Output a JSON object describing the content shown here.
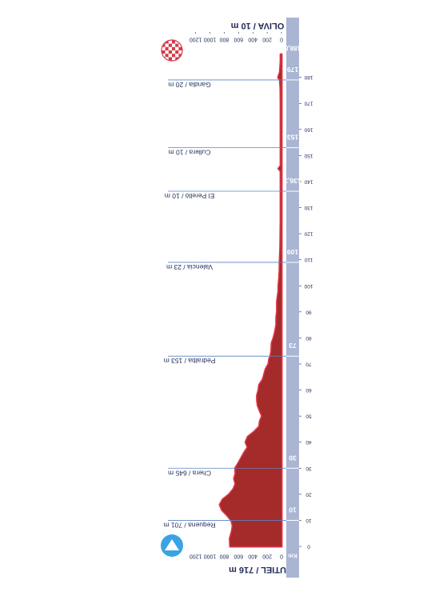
{
  "chart_data": {
    "type": "area",
    "orientation": "rotated 90° (distance axis runs bottom to top)",
    "start_label": "UTIEL / 716 m",
    "finish_label": "OLIVA / 10 m",
    "distance_unit": "Km",
    "xlim": [
      0,
      188.8
    ],
    "ylim": [
      0,
      1200
    ],
    "y_ticks": [
      "0",
      "200",
      "400",
      "600",
      "800",
      "1000",
      "1200"
    ],
    "x_ticks": [
      "0",
      "10",
      "20",
      "30",
      "40",
      "50",
      "60",
      "70",
      "80",
      "90",
      "100",
      "110",
      "120",
      "130",
      "140",
      "150",
      "160",
      "170",
      "180"
    ],
    "total_distance_label": "188,8",
    "colors": {
      "fill": "#a52a2a",
      "climb": "#e03a4a",
      "axis_bar": "#a9b5d2",
      "label": "#1e2a56",
      "leader": "#5b82c8"
    },
    "start_icon": "triangle-start-icon",
    "finish_icon": "checkered-flag-icon",
    "waypoints": [
      {
        "km": 10,
        "km_label": "10",
        "name": "Requena / 701 m"
      },
      {
        "km": 30,
        "km_label": "30",
        "name": "Chera / 645 m"
      },
      {
        "km": 73,
        "km_label": "73",
        "name": "Pedralba / 153 m"
      },
      {
        "km": 109,
        "km_label": "109",
        "name": "Valencia / 23 m"
      },
      {
        "km": 136.3,
        "km_label": "136,3",
        "name": "El Perellò / 10 m"
      },
      {
        "km": 153,
        "km_label": "153",
        "name": "Cullera / 10 m"
      },
      {
        "km": 179,
        "km_label": "179",
        "name": "Gandia / 20 m"
      }
    ],
    "profile": [
      {
        "x": 0,
        "y": 716
      },
      {
        "x": 3,
        "y": 720
      },
      {
        "x": 6,
        "y": 690
      },
      {
        "x": 8,
        "y": 680
      },
      {
        "x": 10,
        "y": 701
      },
      {
        "x": 12,
        "y": 760
      },
      {
        "x": 14,
        "y": 830
      },
      {
        "x": 16,
        "y": 860
      },
      {
        "x": 18,
        "y": 820
      },
      {
        "x": 20,
        "y": 730
      },
      {
        "x": 22,
        "y": 670
      },
      {
        "x": 24,
        "y": 640
      },
      {
        "x": 26,
        "y": 660
      },
      {
        "x": 28,
        "y": 640
      },
      {
        "x": 30,
        "y": 645
      },
      {
        "x": 32,
        "y": 600
      },
      {
        "x": 34,
        "y": 560
      },
      {
        "x": 36,
        "y": 520
      },
      {
        "x": 38,
        "y": 470
      },
      {
        "x": 40,
        "y": 500
      },
      {
        "x": 42,
        "y": 470
      },
      {
        "x": 44,
        "y": 380
      },
      {
        "x": 46,
        "y": 310
      },
      {
        "x": 48,
        "y": 300
      },
      {
        "x": 50,
        "y": 270
      },
      {
        "x": 52,
        "y": 300
      },
      {
        "x": 54,
        "y": 330
      },
      {
        "x": 56,
        "y": 340
      },
      {
        "x": 58,
        "y": 340
      },
      {
        "x": 60,
        "y": 320
      },
      {
        "x": 62,
        "y": 310
      },
      {
        "x": 64,
        "y": 260
      },
      {
        "x": 66,
        "y": 240
      },
      {
        "x": 68,
        "y": 220
      },
      {
        "x": 70,
        "y": 180
      },
      {
        "x": 72,
        "y": 170
      },
      {
        "x": 73,
        "y": 153
      },
      {
        "x": 75,
        "y": 140
      },
      {
        "x": 78,
        "y": 135
      },
      {
        "x": 80,
        "y": 110
      },
      {
        "x": 82,
        "y": 90
      },
      {
        "x": 85,
        "y": 70
      },
      {
        "x": 88,
        "y": 70
      },
      {
        "x": 90,
        "y": 60
      },
      {
        "x": 94,
        "y": 60
      },
      {
        "x": 96,
        "y": 50
      },
      {
        "x": 98,
        "y": 40
      },
      {
        "x": 100,
        "y": 40
      },
      {
        "x": 103,
        "y": 30
      },
      {
        "x": 106,
        "y": 25
      },
      {
        "x": 109,
        "y": 23
      },
      {
        "x": 115,
        "y": 15
      },
      {
        "x": 125,
        "y": 10
      },
      {
        "x": 136.3,
        "y": 10
      },
      {
        "x": 144,
        "y": 10
      },
      {
        "x": 145,
        "y": 40
      },
      {
        "x": 146,
        "y": 10
      },
      {
        "x": 153,
        "y": 10
      },
      {
        "x": 170,
        "y": 10
      },
      {
        "x": 176,
        "y": 12
      },
      {
        "x": 179,
        "y": 20
      },
      {
        "x": 180,
        "y": 45
      },
      {
        "x": 182,
        "y": 20
      },
      {
        "x": 186,
        "y": 10
      },
      {
        "x": 188.8,
        "y": 10
      }
    ]
  }
}
